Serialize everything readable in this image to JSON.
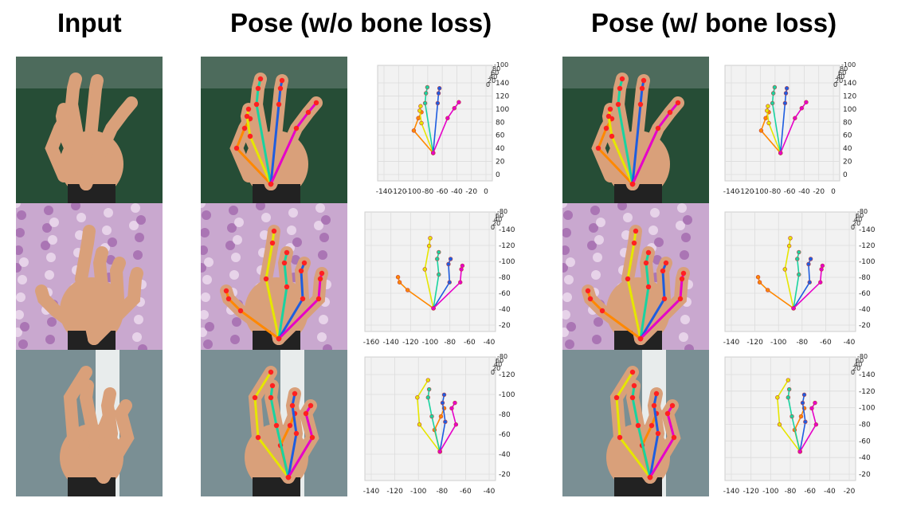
{
  "headings": {
    "input": "Input",
    "pose_without": "Pose (w/o bone loss)",
    "pose_with": "Pose (w/ bone loss)"
  },
  "colors": {
    "thumb": "#ff8800",
    "index": "#e6e600",
    "middle": "#19d3a0",
    "ring": "#1e5de0",
    "pinky": "#e600c8",
    "joint": "#ff2020",
    "skin": "#d9a07a",
    "bg_stadium": "#1f3d2b",
    "bg_floral": "#c9a8cf",
    "bg_wall": "#7a8f94"
  },
  "icons": [
    "hand-photo",
    "hand-skeleton-overlay",
    "3d-pose-plot"
  ],
  "plots": [
    {
      "row": 0,
      "variant": "without",
      "x_ticks": [
        "-140",
        "-120",
        "-100",
        "-80",
        "-60",
        "-40",
        "-20",
        "0"
      ],
      "y_ticks": [
        "0",
        "20",
        "40",
        "60",
        "80",
        "100",
        "120",
        "140"
      ],
      "z_ticks": [
        "-100",
        "80",
        "60",
        "40",
        "20",
        "0"
      ]
    },
    {
      "row": 0,
      "variant": "with",
      "x_ticks": [
        "-140",
        "-120",
        "-100",
        "-80",
        "-60",
        "-40",
        "-20",
        "0"
      ],
      "y_ticks": [
        "0",
        "20",
        "40",
        "60",
        "80",
        "100",
        "120",
        "140"
      ],
      "z_ticks": [
        "-100",
        "80",
        "60",
        "40",
        "20",
        "0"
      ]
    },
    {
      "row": 1,
      "variant": "without",
      "x_ticks": [
        "-160",
        "-140",
        "-120",
        "-100",
        "-80",
        "-60",
        "-40"
      ],
      "y_ticks": [
        "-20",
        "-40",
        "-60",
        "-80",
        "-100",
        "-120",
        "-140"
      ],
      "z_ticks": [
        "-80",
        "60",
        "40",
        "20",
        "0"
      ]
    },
    {
      "row": 1,
      "variant": "with",
      "x_ticks": [
        "-140",
        "-120",
        "-100",
        "-80",
        "-60",
        "-40"
      ],
      "y_ticks": [
        "-20",
        "-40",
        "-60",
        "-80",
        "-100",
        "-120",
        "-140"
      ],
      "z_ticks": [
        "-80",
        "60",
        "40",
        "20",
        "0"
      ]
    },
    {
      "row": 2,
      "variant": "without",
      "x_ticks": [
        "-140",
        "-120",
        "-100",
        "-80",
        "-60",
        "-40"
      ],
      "y_ticks": [
        "-20",
        "-40",
        "-60",
        "-80",
        "-100",
        "-120"
      ],
      "z_ticks": [
        "-80",
        "60",
        "40",
        "20",
        "0"
      ]
    },
    {
      "row": 2,
      "variant": "with",
      "x_ticks": [
        "-140",
        "-120",
        "-100",
        "-80",
        "-60",
        "-40",
        "-20"
      ],
      "y_ticks": [
        "-20",
        "-40",
        "-60",
        "-80",
        "-100",
        "-120",
        "-140"
      ],
      "z_ticks": [
        "-80",
        "60",
        "40",
        "20",
        "0"
      ]
    }
  ]
}
